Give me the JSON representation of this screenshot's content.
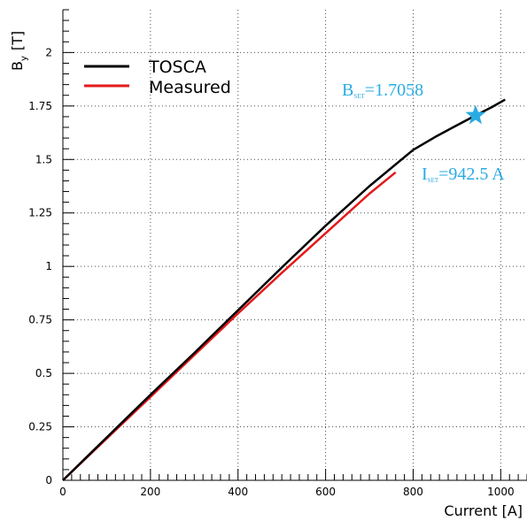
{
  "chart_data": {
    "type": "line",
    "xlabel": "Current [A]",
    "ylabel": "B",
    "ylabel_sub": "y",
    "ylabel_unit": "[T]",
    "xlim": [
      0,
      1060
    ],
    "ylim": [
      0,
      2.2
    ],
    "x_ticks": [
      0,
      200,
      400,
      600,
      800,
      1000
    ],
    "x_tick_labels": [
      "0",
      "200",
      "400",
      "600",
      "800",
      "1000"
    ],
    "y_ticks": [
      0,
      0.25,
      0.5,
      0.75,
      1,
      1.25,
      1.5,
      1.75,
      2
    ],
    "y_tick_labels": [
      "0",
      "0.25",
      "0.5",
      "0.75",
      "1",
      "1.25",
      "1.5",
      "1.75",
      "2"
    ],
    "grid": true,
    "legend_placement": "top-left",
    "series": [
      {
        "name": "TOSCA",
        "color": "#000000",
        "x": [
          0,
          100,
          200,
          300,
          400,
          500,
          600,
          700,
          800,
          850,
          900,
          942.5,
          980,
          1010
        ],
        "y": [
          0,
          0.2,
          0.4,
          0.595,
          0.795,
          0.995,
          1.19,
          1.375,
          1.545,
          1.605,
          1.66,
          1.7058,
          1.745,
          1.78
        ]
      },
      {
        "name": "Measured",
        "color": "#e31a1c",
        "x": [
          0,
          100,
          200,
          300,
          400,
          500,
          600,
          700,
          760
        ],
        "y": [
          0,
          0.195,
          0.39,
          0.585,
          0.78,
          0.97,
          1.155,
          1.34,
          1.44
        ]
      }
    ],
    "marker": {
      "shape": "star",
      "color": "#29abe2",
      "x": 942.5,
      "y": 1.7058
    },
    "annotations": [
      {
        "main": "B",
        "sub": "SET",
        "rest": "=1.7058"
      },
      {
        "main": "I",
        "sub": "SET",
        "rest": "=942.5 A"
      }
    ]
  }
}
